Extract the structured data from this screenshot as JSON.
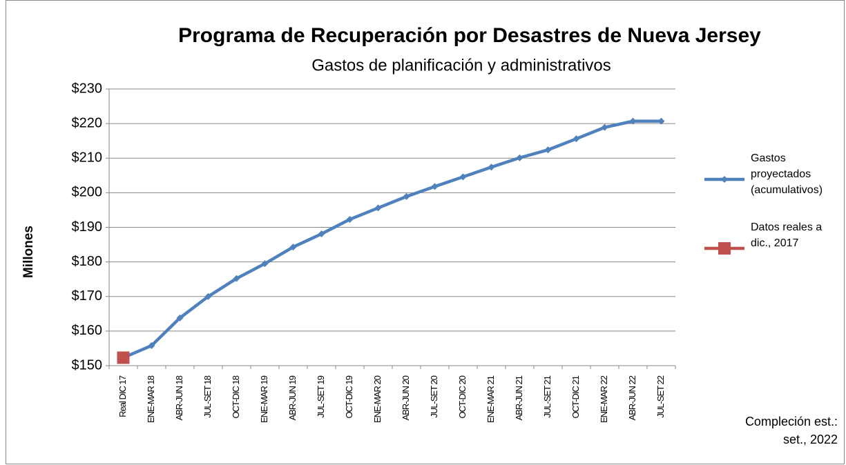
{
  "chart_data": {
    "type": "line",
    "title": "Programa de Recuperación por Desastres de Nueva Jersey",
    "subtitle": "Gastos de planificación y administrativos",
    "y_label": "Millones",
    "annotation": "Compleción est.: set., 2022",
    "categories": [
      "Real DIC 17",
      "ENE-MAR 18",
      "ABR-JUN 18",
      "JUL-SET 18",
      "OCT-DIC 18",
      "ENE-MAR 19",
      "ABR-JUN 19",
      "JUL-SET 19",
      "OCT-DIC 19",
      "ENE-MAR 20",
      "ABR-JUN 20",
      "JUL-SET 20",
      "OCT-DIC 20",
      "ENE-MAR 21",
      "ABR-JUN 21",
      "JUL-SET 21",
      "OCT-DIC 21",
      "ENE-MAR 22",
      "ABR-JUN 22",
      "JUL-SET 22"
    ],
    "series": [
      {
        "name": "Gastos proyectados (acumulativos)",
        "color": "#4f81bd",
        "marker": "diamond",
        "values": [
          152.3,
          155.8,
          163.8,
          170.0,
          175.2,
          179.5,
          184.3,
          188.1,
          192.3,
          195.6,
          198.9,
          201.8,
          204.6,
          207.4,
          210.1,
          212.4,
          215.6,
          218.9,
          220.7,
          220.7
        ]
      },
      {
        "name": "Datos reales a dic., 2017",
        "color": "#c0504d",
        "marker": "square",
        "values": [
          152.3,
          null,
          null,
          null,
          null,
          null,
          null,
          null,
          null,
          null,
          null,
          null,
          null,
          null,
          null,
          null,
          null,
          null,
          null,
          null
        ]
      }
    ],
    "ylim": [
      150,
      230
    ],
    "yticks": [
      {
        "value": 150,
        "label": "$150"
      },
      {
        "value": 160,
        "label": "$160"
      },
      {
        "value": 170,
        "label": "$170"
      },
      {
        "value": 180,
        "label": "$180"
      },
      {
        "value": 190,
        "label": "$190"
      },
      {
        "value": 200,
        "label": "$200"
      },
      {
        "value": 210,
        "label": "$210"
      },
      {
        "value": 220,
        "label": "$220"
      },
      {
        "value": 230,
        "label": "$230"
      }
    ],
    "grid": true,
    "legend": "right"
  }
}
